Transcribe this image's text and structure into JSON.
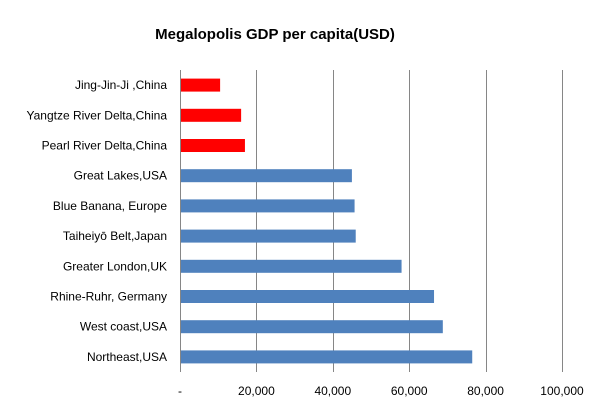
{
  "chart_data": {
    "type": "bar",
    "orientation": "horizontal",
    "title": "Megalopolis GDP per capita(USD)",
    "xlabel": "",
    "ylabel": "",
    "categories": [
      "Jing-Jin-Ji ,China",
      "Yangtze River Delta,China",
      "Pearl River Delta,China",
      "Great Lakes,USA",
      "Blue Banana, Europe",
      "Taiheiyō Belt,Japan",
      "Greater London,UK",
      "Rhine-Ruhr, Germany",
      "West coast,USA",
      "Northeast,USA"
    ],
    "values": [
      10500,
      16000,
      17000,
      45000,
      45700,
      46000,
      58000,
      66500,
      68800,
      76500
    ],
    "bar_colors": [
      "#ff0000",
      "#ff0000",
      "#ff0000",
      "#4f81bd",
      "#4f81bd",
      "#4f81bd",
      "#4f81bd",
      "#4f81bd",
      "#4f81bd",
      "#4f81bd"
    ],
    "xlim": [
      0,
      100000
    ],
    "xticks": [
      0,
      20000,
      40000,
      60000,
      80000,
      100000
    ],
    "xtick_labels": [
      "-",
      "20,000",
      "40,000",
      "60,000",
      "80,000",
      "100,000"
    ],
    "grid": "vertical",
    "legend": "none",
    "colors": {
      "china": "#ff0000",
      "other": "#4f81bd",
      "grid": "#868686",
      "axis": "#868686"
    }
  }
}
